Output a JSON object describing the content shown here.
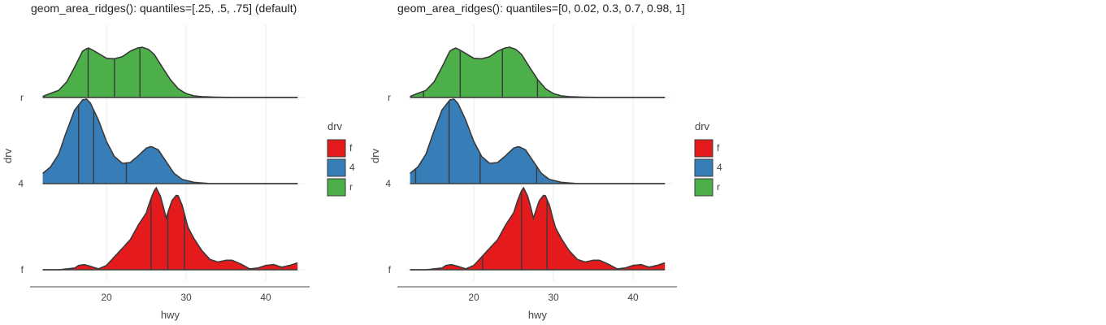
{
  "colors": {
    "f": "#e41a1c",
    "4": "#377eb8",
    "r": "#4daf4a",
    "outline": "#3a3a3a",
    "grid": "#ebebeb",
    "axis": "#4d4d4d"
  },
  "chart_data": [
    {
      "type": "area",
      "title": "geom_area_ridges(): quantiles=[.25, .5, .75] (default)",
      "xlabel": "hwy",
      "ylabel": "drv",
      "xlim": [
        11.5,
        44.5
      ],
      "xticks": [
        20,
        30,
        40
      ],
      "categories": [
        "r",
        "4",
        "f"
      ],
      "legend": {
        "title": "drv",
        "entries": [
          "f",
          "4",
          "r"
        ],
        "position": "right"
      },
      "series": [
        {
          "name": "r",
          "quantile_lines_x": [
            17.7,
            21.0,
            24.2
          ]
        },
        {
          "name": "4",
          "quantile_lines_x": [
            16.5,
            18.4,
            22.5
          ]
        },
        {
          "name": "f",
          "quantile_lines_x": [
            25.6,
            27.7,
            29.8
          ]
        }
      ]
    },
    {
      "type": "area",
      "title": "geom_area_ridges(): quantiles=[0, 0.02, 0.3, 0.7, 0.98, 1]",
      "xlabel": "hwy",
      "ylabel": "drv",
      "xlim": [
        11.5,
        44.5
      ],
      "xticks": [
        20,
        30,
        40
      ],
      "categories": [
        "r",
        "4",
        "f"
      ],
      "legend": {
        "title": "drv",
        "entries": [
          "f",
          "4",
          "r"
        ],
        "position": "right"
      },
      "series": [
        {
          "name": "r",
          "quantile_lines_x": [
            13.7,
            18.3,
            23.6,
            28.0
          ]
        },
        {
          "name": "4",
          "quantile_lines_x": [
            12.7,
            16.9,
            20.8,
            27.9
          ]
        },
        {
          "name": "f",
          "quantile_lines_x": [
            21.1,
            26.0,
            29.2
          ]
        }
      ]
    }
  ],
  "density_profiles": {
    "r": {
      "x": [
        12,
        14,
        15,
        16,
        17,
        17.7,
        18.5,
        20,
        21,
        22,
        23,
        24,
        24.5,
        25.3,
        26,
        27,
        28,
        29,
        30,
        31,
        32,
        34,
        36,
        44
      ],
      "y": [
        0.02,
        0.13,
        0.28,
        0.55,
        0.84,
        0.9,
        0.84,
        0.71,
        0.7,
        0.74,
        0.84,
        0.9,
        0.91,
        0.87,
        0.78,
        0.55,
        0.33,
        0.16,
        0.07,
        0.03,
        0.015,
        0.005,
        0.0,
        0.0
      ]
    },
    "4": {
      "x": [
        12,
        13,
        14,
        15,
        16,
        17,
        17.5,
        18,
        19,
        20,
        21,
        22,
        23,
        24,
        25,
        25.6,
        26.5,
        27.5,
        28.5,
        29.5,
        31,
        33,
        36,
        44
      ],
      "y": [
        0.12,
        0.2,
        0.35,
        0.62,
        0.87,
        0.99,
        1.0,
        0.95,
        0.75,
        0.5,
        0.32,
        0.24,
        0.25,
        0.33,
        0.42,
        0.44,
        0.4,
        0.26,
        0.12,
        0.05,
        0.015,
        0.0,
        0.0,
        0.0
      ]
    },
    "f": {
      "x": [
        12,
        14,
        16,
        16.5,
        17.2,
        18,
        19,
        20,
        21,
        22,
        23,
        24,
        25,
        25.6,
        26.2,
        26.8,
        27.5,
        28.2,
        28.9,
        29.5,
        30.2,
        31,
        32,
        33,
        34,
        35,
        35.8,
        37,
        38,
        39,
        40,
        41,
        42,
        43,
        44
      ],
      "y": [
        0.0,
        0.0,
        0.02,
        0.05,
        0.06,
        0.04,
        0.01,
        0.05,
        0.15,
        0.25,
        0.35,
        0.52,
        0.66,
        0.83,
        0.96,
        0.85,
        0.6,
        0.8,
        0.88,
        0.75,
        0.5,
        0.36,
        0.22,
        0.12,
        0.09,
        0.11,
        0.11,
        0.06,
        0.01,
        0.02,
        0.05,
        0.06,
        0.03,
        0.05,
        0.08
      ]
    }
  }
}
